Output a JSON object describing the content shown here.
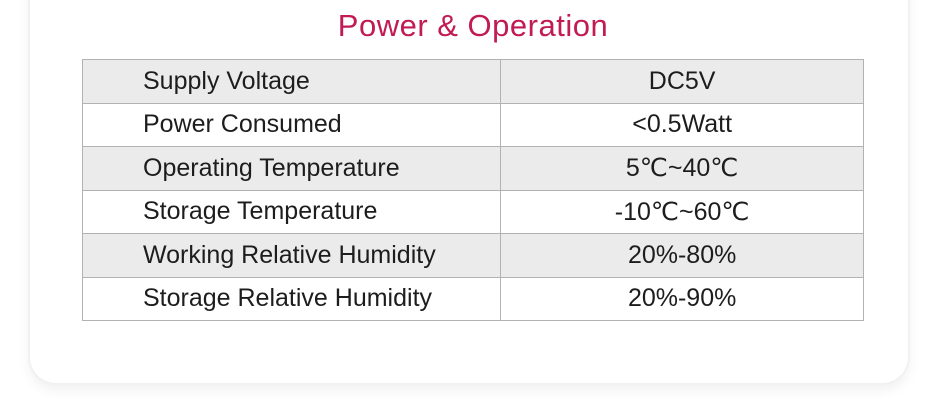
{
  "page": {
    "title": "Power & Operation",
    "accent_color": "#c11a54",
    "zebra_row_color": "#ebebeb",
    "table_border_color": "#b2b2b2"
  },
  "spec_table": {
    "rows": [
      {
        "label": "Supply Voltage",
        "value": "DC5V"
      },
      {
        "label": "Power Consumed",
        "value": "<0.5Watt"
      },
      {
        "label": "Operating Temperature",
        "value": "5℃~40℃"
      },
      {
        "label": "Storage Temperature",
        "value": "-10℃~60℃"
      },
      {
        "label": "Working Relative Humidity",
        "value": "20%-80%"
      },
      {
        "label": "Storage Relative Humidity",
        "value": "20%-90%"
      }
    ]
  }
}
